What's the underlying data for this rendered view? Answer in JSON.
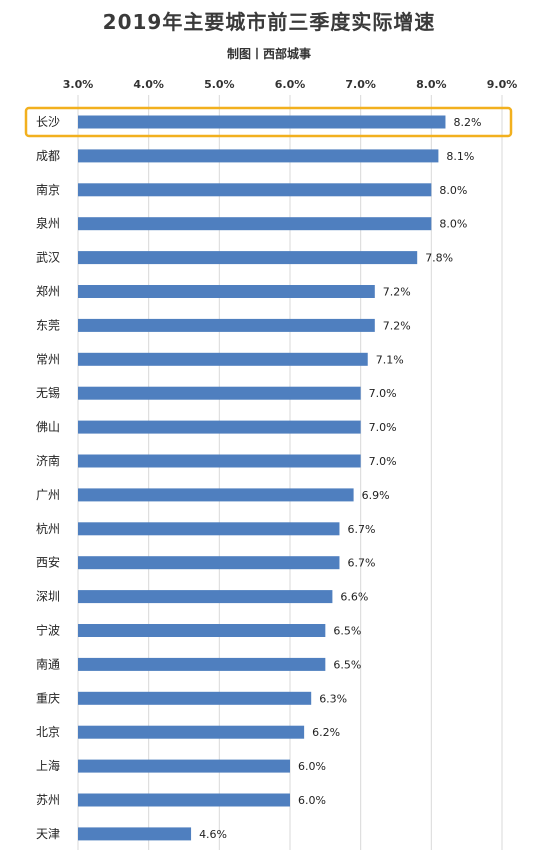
{
  "title": "2019年主要城市前三季度实际增速",
  "subtitle": "制图丨西部城事",
  "chart_data": {
    "type": "bar",
    "orientation": "horizontal",
    "title": "2019年主要城市前三季度实际增速",
    "subtitle": "制图丨西部城事",
    "xlim": [
      3.0,
      9.0
    ],
    "ticks": [
      "3.0%",
      "4.0%",
      "5.0%",
      "6.0%",
      "7.0%",
      "8.0%",
      "9.0%"
    ],
    "tick_values": [
      3.0,
      4.0,
      5.0,
      6.0,
      7.0,
      8.0,
      9.0
    ],
    "axis_position": "top",
    "grid": true,
    "bar_color": "#4f7fbf",
    "highlight_color": "#f2b01e",
    "highlight_category": "长沙",
    "categories": [
      "长沙",
      "成都",
      "南京",
      "泉州",
      "武汉",
      "郑州",
      "东莞",
      "常州",
      "无锡",
      "佛山",
      "济南",
      "广州",
      "杭州",
      "西安",
      "深圳",
      "宁波",
      "南通",
      "重庆",
      "北京",
      "上海",
      "苏州",
      "天津"
    ],
    "values": [
      8.2,
      8.1,
      8.0,
      8.0,
      7.8,
      7.2,
      7.2,
      7.1,
      7.0,
      7.0,
      7.0,
      6.9,
      6.7,
      6.7,
      6.6,
      6.5,
      6.5,
      6.3,
      6.2,
      6.0,
      6.0,
      4.6
    ],
    "value_labels": [
      "8.2%",
      "8.1%",
      "8.0%",
      "8.0%",
      "7.8%",
      "7.2%",
      "7.2%",
      "7.1%",
      "7.0%",
      "7.0%",
      "7.0%",
      "6.9%",
      "6.7%",
      "6.7%",
      "6.6%",
      "6.5%",
      "6.5%",
      "6.3%",
      "6.2%",
      "6.0%",
      "6.0%",
      "4.6%"
    ]
  }
}
